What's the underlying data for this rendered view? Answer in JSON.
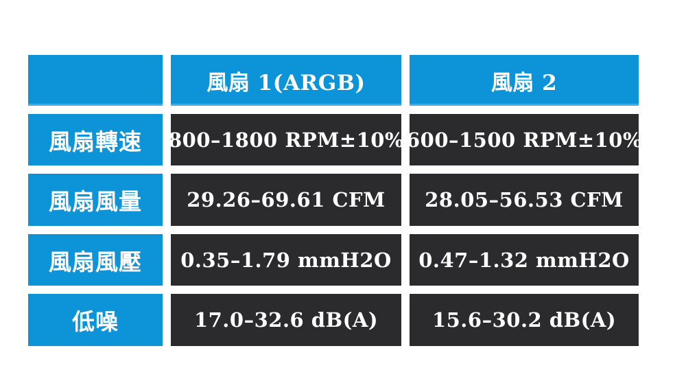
{
  "colors": {
    "header_bg": "#0d94d8",
    "value_bg": "#2b2a2c",
    "text": "#ffffff",
    "page_bg": "#ffffff"
  },
  "chart_data": {
    "type": "table",
    "columns": [
      "",
      "風扇 1(ARGB)",
      "風扇 2"
    ],
    "rows": [
      [
        "風扇轉速",
        "800–1800 RPM±10%",
        "600–1500 RPM±10%"
      ],
      [
        "風扇風量",
        "29.26–69.61 CFM",
        "28.05–56.53 CFM"
      ],
      [
        "風扇風壓",
        "0.35–1.79 mmH2O",
        "0.47–1.32 mmH2O"
      ],
      [
        "低噪",
        "17.0–32.6 dB(A)",
        "15.6–30.2 dB(A)"
      ]
    ]
  }
}
